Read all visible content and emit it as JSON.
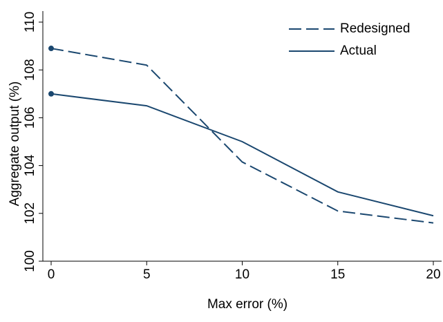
{
  "chart_data": {
    "type": "line",
    "x_label": "Max error (%)",
    "y_label": "Aggregate output (%)",
    "x": [
      0,
      5,
      10,
      15,
      20
    ],
    "series": [
      {
        "name": "Redesigned",
        "color": "#1a476f",
        "dash": true,
        "values": [
          108.9,
          108.2,
          104.15,
          102.1,
          101.6
        ]
      },
      {
        "name": "Actual",
        "color": "#1a476f",
        "dash": false,
        "values": [
          107.0,
          106.5,
          105.0,
          102.9,
          101.9
        ]
      }
    ],
    "xlim": [
      0,
      20
    ],
    "xticks": [
      0,
      5,
      10,
      15,
      20
    ],
    "ylim": [
      100,
      110
    ],
    "yticks": [
      100,
      102,
      104,
      106,
      108,
      110
    ],
    "legend": "top-right",
    "markers_first_point": true
  }
}
